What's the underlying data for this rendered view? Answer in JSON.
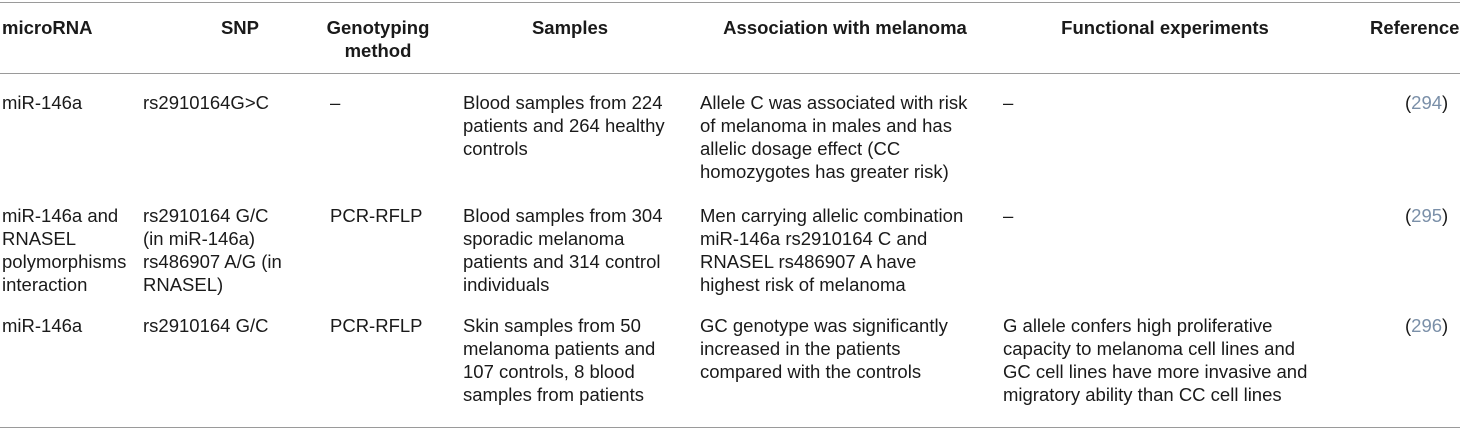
{
  "header": {
    "microrna": [
      "microRNA"
    ],
    "snp": [
      "SNP"
    ],
    "method": [
      "Genotyping",
      "method"
    ],
    "samples": [
      "Samples"
    ],
    "association": [
      "Association with melanoma"
    ],
    "functional": [
      "Functional experiments"
    ],
    "reference": [
      "Reference"
    ]
  },
  "rows": [
    {
      "microrna": [
        "miR-146a"
      ],
      "snp": [
        "rs2910164G>C"
      ],
      "method": [
        "–"
      ],
      "samples": [
        "Blood samples from 224",
        "patients and 264 healthy",
        "controls"
      ],
      "association": [
        "Allele C was associated with risk",
        "of melanoma in males and has",
        "allelic dosage effect (CC",
        "homozygotes has greater risk)"
      ],
      "functional": [
        "–"
      ],
      "reference": "294"
    },
    {
      "microrna": [
        "miR-146a and",
        "RNASEL",
        "polymorphisms",
        "interaction"
      ],
      "snp": [
        "rs2910164 G/C",
        "(in miR-146a)",
        "rs486907 A/G (in",
        "RNASEL)"
      ],
      "method": [
        "PCR-RFLP"
      ],
      "samples": [
        "Blood samples from 304",
        "sporadic melanoma",
        "patients and 314 control",
        "individuals"
      ],
      "association": [
        "Men carrying allelic combination",
        "miR-146a rs2910164 C and",
        "RNASEL rs486907 A have",
        "highest risk of melanoma"
      ],
      "functional": [
        "–"
      ],
      "reference": "295"
    },
    {
      "microrna": [
        "miR-146a"
      ],
      "snp": [
        "rs2910164 G/C"
      ],
      "method": [
        "PCR-RFLP"
      ],
      "samples": [
        "Skin samples from 50",
        "melanoma patients and",
        "107 controls, 8 blood",
        "samples from patients"
      ],
      "association": [
        "GC genotype was significantly",
        "increased in the patients",
        "compared with the controls"
      ],
      "functional": [
        "G allele confers high proliferative",
        "capacity to melanoma cell lines and",
        "GC cell lines have more invasive and",
        "migratory ability than CC cell lines"
      ],
      "reference": "296"
    }
  ]
}
